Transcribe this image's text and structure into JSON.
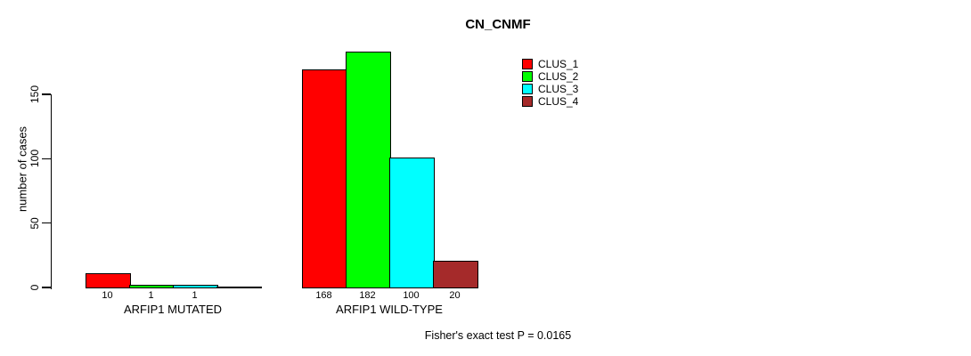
{
  "chart_data": {
    "type": "bar",
    "title": "CN_CNMF",
    "ylabel": "number of cases",
    "xlabel": "",
    "yticks": [
      0,
      50,
      100,
      150
    ],
    "ylim": [
      0,
      182
    ],
    "grid": false,
    "legend_position": "top-right-inside",
    "categories": [
      "ARFIP1 MUTATED",
      "ARFIP1 WILD-TYPE"
    ],
    "series": [
      {
        "name": "CLUS_1",
        "color": "#ff0000",
        "values": [
          10,
          168
        ]
      },
      {
        "name": "CLUS_2",
        "color": "#00ff00",
        "values": [
          1,
          182
        ]
      },
      {
        "name": "CLUS_3",
        "color": "#00ffff",
        "values": [
          1,
          100
        ]
      },
      {
        "name": "CLUS_4",
        "color": "#a52a2a",
        "values": [
          0,
          20
        ]
      }
    ],
    "bar_value_labels": [
      "10",
      "1",
      "1",
      "",
      "168",
      "182",
      "100",
      "20"
    ],
    "annotation": "Fisher's exact test P = 0.0165"
  },
  "colors": {
    "axis": "#000000",
    "text": "#000000",
    "background": "#ffffff"
  }
}
